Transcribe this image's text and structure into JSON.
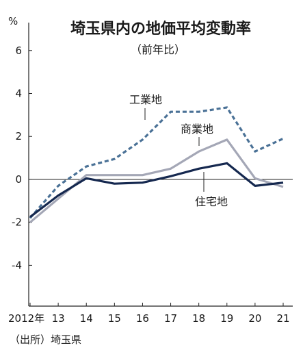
{
  "chart_data": {
    "type": "line",
    "title": "埼玉県内の地価平均変動率",
    "subtitle": "（前年比）",
    "y_unit": "%",
    "source": "（出所）埼玉県",
    "x_tick_labels": [
      "2012年",
      "13",
      "14",
      "15",
      "16",
      "17",
      "18",
      "19",
      "20",
      "21"
    ],
    "y_tick_labels": [
      "6",
      "4",
      "2",
      "0",
      "-2",
      "-4"
    ],
    "x": [
      2012,
      2013,
      2014,
      2015,
      2016,
      2017,
      2018,
      2019,
      2020,
      2021
    ],
    "xlim": [
      2012,
      2021
    ],
    "ylim": [
      -5.9,
      7.3
    ],
    "series": [
      {
        "name": "工業地",
        "color": "#4a7196",
        "style": "dashed",
        "values": [
          -1.8,
          -0.3,
          0.6,
          0.95,
          1.85,
          3.15,
          3.15,
          3.35,
          1.3,
          1.9
        ]
      },
      {
        "name": "商業地",
        "color": "#a4a7b6",
        "style": "solid",
        "values": [
          -2.0,
          -0.9,
          0.2,
          0.2,
          0.2,
          0.5,
          1.3,
          1.85,
          0.05,
          -0.35
        ]
      },
      {
        "name": "住宅地",
        "color": "#15284f",
        "style": "solid",
        "values": [
          -1.75,
          -0.75,
          0.05,
          -0.2,
          -0.15,
          0.15,
          0.5,
          0.75,
          -0.3,
          -0.15
        ]
      }
    ]
  }
}
